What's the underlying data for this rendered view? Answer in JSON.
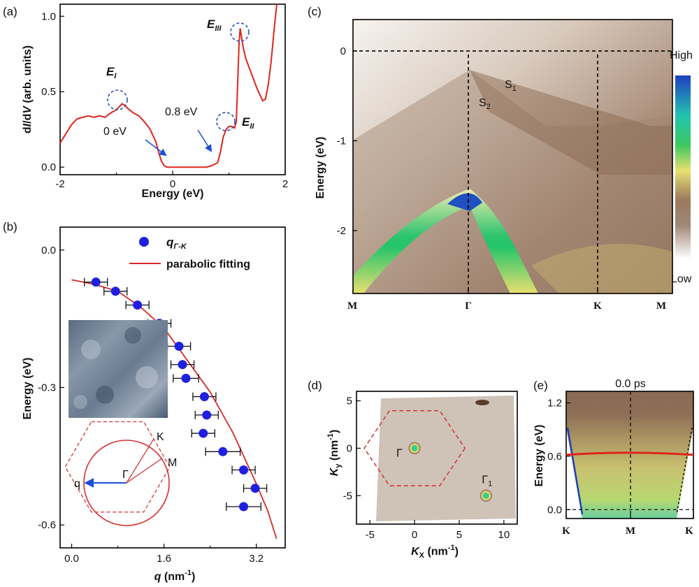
{
  "chart_data": [
    {
      "panel": "(a)",
      "type": "line",
      "xlabel": "Energy (eV)",
      "ylabel": "dI/dV (arb. units)",
      "xlim": [
        -2,
        2
      ],
      "ylim": [
        -0.05,
        1.08
      ],
      "xticks": [
        "-2",
        "0",
        "2"
      ],
      "yticks": [
        "0.0",
        "0.5",
        "1.0"
      ],
      "series": [
        {
          "name": "dI/dV",
          "color": "#e0241c",
          "x": [
            -2.0,
            -1.9,
            -1.8,
            -1.7,
            -1.6,
            -1.5,
            -1.4,
            -1.3,
            -1.2,
            -1.1,
            -1.0,
            -0.95,
            -0.9,
            -0.85,
            -0.8,
            -0.7,
            -0.6,
            -0.5,
            -0.4,
            -0.3,
            -0.25,
            -0.2,
            -0.15,
            -0.1,
            0.0,
            0.2,
            0.4,
            0.6,
            0.7,
            0.8,
            0.85,
            0.9,
            0.95,
            1.0,
            1.05,
            1.1,
            1.13,
            1.15,
            1.18,
            1.2,
            1.25,
            1.3,
            1.4,
            1.5,
            1.6,
            1.65,
            1.7,
            1.75,
            1.8,
            1.85
          ],
          "y": [
            0.16,
            0.22,
            0.28,
            0.32,
            0.33,
            0.34,
            0.33,
            0.34,
            0.33,
            0.36,
            0.38,
            0.4,
            0.42,
            0.41,
            0.39,
            0.36,
            0.34,
            0.3,
            0.25,
            0.17,
            0.1,
            0.04,
            0.01,
            0.0,
            0.0,
            0.0,
            0.0,
            0.0,
            0.01,
            0.03,
            0.1,
            0.2,
            0.25,
            0.27,
            0.27,
            0.26,
            0.3,
            0.5,
            0.82,
            0.92,
            0.8,
            0.72,
            0.62,
            0.52,
            0.44,
            0.45,
            0.55,
            0.7,
            0.9,
            1.08
          ]
        }
      ],
      "annotations": [
        {
          "text": "E",
          "sub": "I",
          "at_x": -0.95,
          "at_y": 0.42
        },
        {
          "text": "E",
          "sub": "II",
          "at_x": 1.0,
          "at_y": 0.27
        },
        {
          "text": "E",
          "sub": "III",
          "at_x": 1.2,
          "at_y": 0.92
        },
        {
          "text": "0 eV",
          "arrow_to_x": -0.15,
          "arrow_to_y": 0.02
        },
        {
          "text": "0.8 eV",
          "arrow_to_x": 0.8,
          "arrow_to_y": 0.05
        }
      ]
    },
    {
      "panel": "(b)",
      "type": "scatter",
      "xlabel": "q (nm⁻¹)",
      "ylabel": "Energy (eV)",
      "xlim": [
        -0.2,
        3.7
      ],
      "ylim": [
        -0.65,
        0.05
      ],
      "xticks": [
        "0.0",
        "1.6",
        "3.2"
      ],
      "yticks": [
        "0.0",
        "-0.3",
        "-0.6"
      ],
      "legend": [
        "qΓ-K",
        "parabolic fitting"
      ],
      "series": [
        {
          "name": "qΓ-K",
          "color": "#1f1fe0",
          "x": [
            0.42,
            0.76,
            1.14,
            1.52,
            1.86,
            1.92,
            1.98,
            2.3,
            2.34,
            2.28,
            2.62,
            2.98,
            3.18,
            2.98
          ],
          "y": [
            -0.07,
            -0.09,
            -0.12,
            -0.16,
            -0.21,
            -0.25,
            -0.28,
            -0.32,
            -0.36,
            -0.4,
            -0.44,
            -0.48,
            -0.52,
            -0.56
          ],
          "xerr": [
            0.2,
            0.2,
            0.2,
            0.2,
            0.2,
            0.2,
            0.22,
            0.2,
            0.2,
            0.2,
            0.3,
            0.2,
            0.2,
            0.3
          ]
        },
        {
          "name": "parabolic fitting",
          "color": "#d42a2a",
          "x": [
            0.0,
            0.4,
            0.8,
            1.2,
            1.6,
            2.0,
            2.4,
            2.8,
            3.2,
            3.4,
            3.55
          ],
          "y": [
            -0.065,
            -0.075,
            -0.09,
            -0.125,
            -0.17,
            -0.24,
            -0.31,
            -0.4,
            -0.51,
            -0.57,
            -0.63
          ]
        }
      ],
      "annotations": [
        "K",
        "M",
        "Γ",
        "q"
      ]
    },
    {
      "panel": "(c)",
      "type": "heatmap",
      "ylabel": "Energy (eV)",
      "xticks": [
        "M",
        "Γ",
        "K",
        "M"
      ],
      "yticks": [
        "0",
        "-1",
        "-2"
      ],
      "ylim": [
        -2.7,
        0.35
      ],
      "colorbar": {
        "high": "High",
        "low": "Low"
      },
      "bands": [
        {
          "label": "S",
          "sub": "1"
        },
        {
          "label": "S",
          "sub": "2"
        }
      ]
    },
    {
      "panel": "(d)",
      "type": "heatmap",
      "xlabel": "Kx (nm⁻¹)",
      "ylabel": "Ky (nm⁻¹)",
      "xlim": [
        -6.5,
        11.5
      ],
      "ylim": [
        -8,
        6
      ],
      "xticks": [
        "-5",
        "0",
        "5",
        "10"
      ],
      "yticks": [
        "5",
        "0",
        "-5"
      ],
      "points": [
        {
          "label": "Γ",
          "x": 0,
          "y": 0
        },
        {
          "label": "Γ",
          "sub": "1",
          "x": 8,
          "y": -5
        }
      ]
    },
    {
      "panel": "(e)",
      "type": "heatmap",
      "title": "0.0 ps",
      "ylabel": "Energy (eV)",
      "xticks": [
        "K",
        "M",
        "K"
      ],
      "yticks": [
        "1.2",
        "0.6",
        "0.0"
      ],
      "ylim": [
        -0.1,
        1.33
      ],
      "line_energy": 0.64
    }
  ],
  "labels": {
    "a_letter": "(a)",
    "b_letter": "(b)",
    "c_letter": "(c)",
    "d_letter": "(d)",
    "e_letter": "(e)",
    "a_xlabel": "Energy (eV)",
    "a_ylabel_d1": "d",
    "a_ylabel_I": "I",
    "a_ylabel_sl": "/d",
    "a_ylabel_V": "V",
    "a_ylabel_rest": " (arb. units)",
    "a_E": "E",
    "a_I": "I",
    "a_II": "II",
    "a_III": "III",
    "a_zero": "0 eV",
    "a_eight": "0.8 eV",
    "b_ylabel": "Energy (eV)",
    "b_xlabel_q": "q",
    "b_xlabel_rest": " (nm",
    "b_xlabel_sup": "-1",
    "b_xlabel_end": ")",
    "b_legend_q": "q",
    "b_legend_sub": "Γ-K",
    "b_legend_fit": "parabolic fitting",
    "b_K": "K",
    "b_M": "M",
    "b_G": "Γ",
    "b_q": "q",
    "c_ylabel": "Energy (eV)",
    "c_high": "High",
    "c_low": "Low",
    "c_S": "S",
    "c_1": "1",
    "c_2": "2",
    "d_xlabel_K": "K",
    "d_xlabel_x": "X",
    "d_xlabel_rest": " (nm",
    "d_xlabel_sup": "-1",
    "d_xlabel_end": ")",
    "d_ylabel_K": "K",
    "d_ylabel_y": "y",
    "d_ylabel_rest": " (nm",
    "d_ylabel_sup": "-1",
    "d_ylabel_end": ")",
    "d_G": "Γ",
    "d_G1": "Γ",
    "d_1": "1",
    "e_title": "0.0 ps",
    "e_ylabel": "Energy (eV)"
  },
  "colors": {
    "curve_red": "#e0241c",
    "fit_red": "#d42a2a",
    "marker_blue": "#1f1fe0",
    "arrow_blue": "#1a4fd6",
    "band_yellow": "#e8e070",
    "band_green": "#22c46a",
    "band_blue": "#1f4fc0",
    "bg_brown": "#8c6a52",
    "bg_light": "#f4f0ec"
  }
}
